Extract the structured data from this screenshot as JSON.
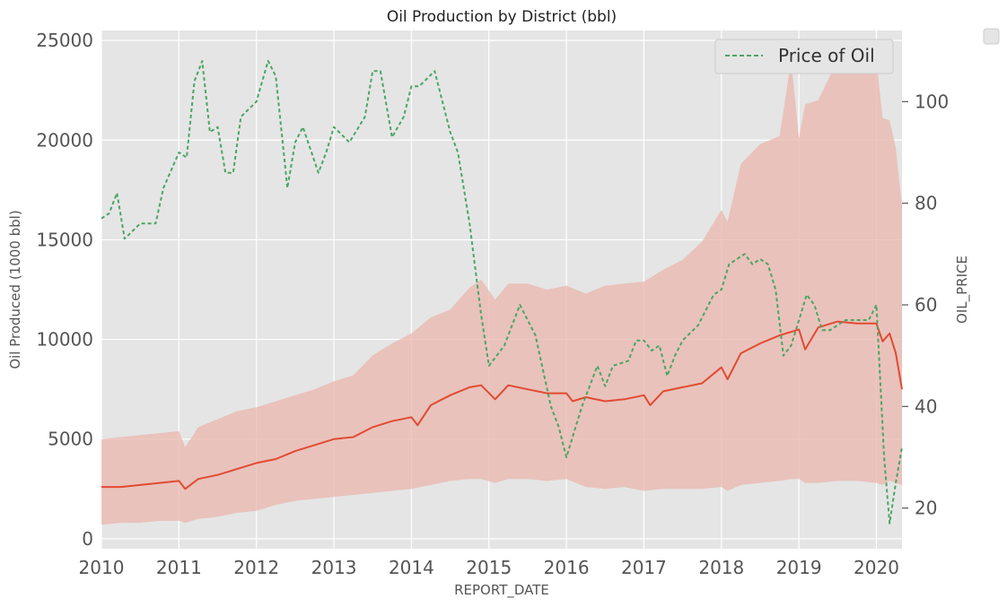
{
  "chart_data": {
    "type": "line",
    "title": "Oil Production by District (bbl)",
    "xlabel": "REPORT_DATE",
    "ylabel": "Oil Produced (1000 bbl)",
    "y2label": "OIL_PRICE",
    "xlim": [
      2010.0,
      2020.33
    ],
    "ylim": [
      -500,
      25500
    ],
    "y2lim": [
      12,
      114
    ],
    "xticks": [
      "2010",
      "2011",
      "2012",
      "2013",
      "2014",
      "2015",
      "2016",
      "2017",
      "2018",
      "2019",
      "2020"
    ],
    "yticks": [
      0,
      5000,
      10000,
      15000,
      20000,
      25000
    ],
    "y2ticks": [
      20,
      40,
      60,
      80,
      100
    ],
    "grid": true,
    "legend_position": "top-right",
    "colors": {
      "production": "#e24a33",
      "band": "#e9b6ac",
      "price": "#4aa564",
      "background": "#e5e5e5"
    },
    "series": [
      {
        "name": "",
        "kind": "line",
        "axis": "left",
        "x": [
          2010.0,
          2010.25,
          2010.5,
          2010.75,
          2011.0,
          2011.08,
          2011.25,
          2011.5,
          2011.75,
          2012.0,
          2012.25,
          2012.5,
          2012.75,
          2013.0,
          2013.25,
          2013.5,
          2013.75,
          2014.0,
          2014.08,
          2014.25,
          2014.5,
          2014.75,
          2014.9,
          2015.08,
          2015.25,
          2015.5,
          2015.75,
          2016.0,
          2016.08,
          2016.25,
          2016.5,
          2016.75,
          2017.0,
          2017.08,
          2017.25,
          2017.5,
          2017.75,
          2018.0,
          2018.08,
          2018.25,
          2018.5,
          2018.75,
          2019.0,
          2019.08,
          2019.25,
          2019.5,
          2019.75,
          2020.0,
          2020.08,
          2020.17,
          2020.25,
          2020.33
        ],
        "values": [
          2600,
          2600,
          2700,
          2800,
          2900,
          2500,
          3000,
          3200,
          3500,
          3800,
          4000,
          4400,
          4700,
          5000,
          5100,
          5600,
          5900,
          6100,
          5700,
          6700,
          7200,
          7600,
          7700,
          7000,
          7700,
          7500,
          7300,
          7300,
          6900,
          7100,
          6900,
          7000,
          7200,
          6700,
          7400,
          7600,
          7800,
          8600,
          8000,
          9300,
          9800,
          10200,
          10500,
          9500,
          10600,
          10900,
          10800,
          10800,
          9900,
          10300,
          9300,
          7500
        ]
      },
      {
        "name": "",
        "kind": "band",
        "axis": "left",
        "x": [
          2010.0,
          2010.25,
          2010.5,
          2010.75,
          2011.0,
          2011.08,
          2011.25,
          2011.5,
          2011.75,
          2012.0,
          2012.25,
          2012.5,
          2012.75,
          2013.0,
          2013.25,
          2013.5,
          2013.75,
          2014.0,
          2014.25,
          2014.5,
          2014.75,
          2014.9,
          2015.08,
          2015.25,
          2015.5,
          2015.75,
          2016.0,
          2016.25,
          2016.5,
          2016.75,
          2017.0,
          2017.25,
          2017.5,
          2017.75,
          2018.0,
          2018.08,
          2018.25,
          2018.5,
          2018.75,
          2018.9,
          2019.0,
          2019.08,
          2019.25,
          2019.5,
          2019.75,
          2020.0,
          2020.08,
          2020.17,
          2020.25,
          2020.33
        ],
        "lower": [
          700,
          800,
          800,
          900,
          900,
          800,
          1000,
          1100,
          1300,
          1400,
          1700,
          1900,
          2000,
          2100,
          2200,
          2300,
          2400,
          2500,
          2700,
          2900,
          3000,
          3000,
          2800,
          3000,
          3000,
          2900,
          3000,
          2600,
          2500,
          2600,
          2400,
          2500,
          2500,
          2500,
          2600,
          2400,
          2700,
          2800,
          2900,
          3000,
          3000,
          2800,
          2800,
          2900,
          2900,
          2800,
          2700,
          2900,
          2800,
          2700
        ],
        "upper": [
          5000,
          5100,
          5200,
          5300,
          5400,
          4600,
          5600,
          6000,
          6400,
          6600,
          6900,
          7200,
          7500,
          7900,
          8200,
          9200,
          9800,
          10300,
          11100,
          11500,
          12600,
          13000,
          12000,
          12800,
          12800,
          12500,
          12700,
          12300,
          12700,
          12800,
          12900,
          13500,
          14000,
          14900,
          16500,
          15900,
          18800,
          19800,
          20200,
          24000,
          20100,
          21800,
          22000,
          24000,
          24300,
          24000,
          21100,
          21000,
          19600,
          16700
        ]
      },
      {
        "name": "Price of Oil",
        "kind": "line",
        "style": "dashed",
        "axis": "right",
        "x": [
          2010.0,
          2010.1,
          2010.2,
          2010.3,
          2010.5,
          2010.7,
          2010.8,
          2011.0,
          2011.1,
          2011.2,
          2011.3,
          2011.4,
          2011.5,
          2011.6,
          2011.7,
          2011.8,
          2012.0,
          2012.15,
          2012.25,
          2012.4,
          2012.5,
          2012.6,
          2012.8,
          2012.9,
          2013.0,
          2013.2,
          2013.4,
          2013.5,
          2013.6,
          2013.75,
          2013.9,
          2014.0,
          2014.1,
          2014.3,
          2014.5,
          2014.6,
          2014.75,
          2014.9,
          2015.0,
          2015.1,
          2015.2,
          2015.4,
          2015.5,
          2015.6,
          2015.8,
          2015.9,
          2016.0,
          2016.1,
          2016.2,
          2016.4,
          2016.5,
          2016.6,
          2016.8,
          2016.9,
          2017.0,
          2017.1,
          2017.2,
          2017.3,
          2017.4,
          2017.5,
          2017.7,
          2017.9,
          2018.0,
          2018.1,
          2018.2,
          2018.3,
          2018.4,
          2018.5,
          2018.6,
          2018.7,
          2018.8,
          2018.9,
          2019.0,
          2019.1,
          2019.2,
          2019.3,
          2019.4,
          2019.5,
          2019.6,
          2019.8,
          2019.9,
          2020.0,
          2020.1,
          2020.17,
          2020.25,
          2020.33
        ],
        "values": [
          77,
          78,
          82,
          73,
          76,
          76,
          83,
          90,
          89,
          104,
          108,
          94,
          95,
          86,
          86,
          97,
          100,
          108,
          105,
          83,
          92,
          95,
          86,
          90,
          95,
          92,
          97,
          106,
          106,
          93,
          97,
          103,
          103,
          106,
          94,
          90,
          76,
          58,
          48,
          50,
          52,
          60,
          57,
          54,
          40,
          36,
          30,
          35,
          40,
          48,
          44,
          48,
          49,
          53,
          53,
          51,
          52,
          46,
          50,
          53,
          56,
          62,
          63,
          68,
          69,
          70,
          68,
          69,
          68,
          63,
          50,
          52,
          57,
          62,
          60,
          55,
          55,
          56,
          57,
          57,
          57,
          60,
          30,
          17,
          25,
          32
        ]
      }
    ]
  }
}
